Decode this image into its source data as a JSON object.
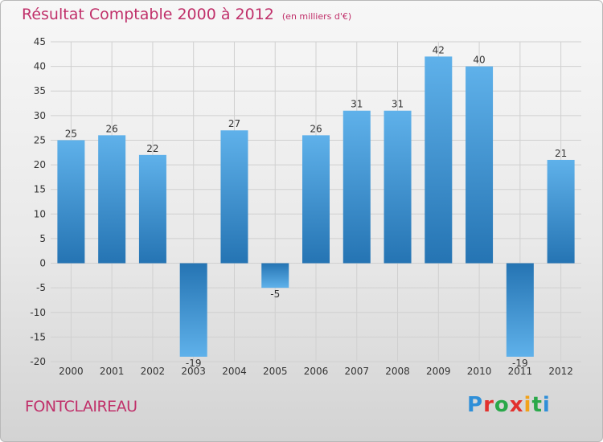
{
  "title": "Résultat Comptable 2000 à 2012",
  "unit_label": "(en milliers d'€)",
  "commune": "FONTCLAIREAU",
  "brand": [
    "P",
    "r",
    "o",
    "x",
    "i",
    "t",
    "i"
  ],
  "colors": {
    "title": "#c0306a",
    "bar_light": "#5fb1ea",
    "bar_dark": "#2574b3",
    "grid": "#d0d0d0",
    "axis_text": "#333333"
  },
  "chart_data": {
    "type": "bar",
    "categories": [
      "2000",
      "2001",
      "2002",
      "2003",
      "2004",
      "2005",
      "2006",
      "2007",
      "2008",
      "2009",
      "2010",
      "2011",
      "2012"
    ],
    "values": [
      25,
      26,
      22,
      -19,
      27,
      -5,
      26,
      31,
      31,
      42,
      40,
      -19,
      21
    ],
    "ylim": [
      -20,
      45
    ],
    "yticks": [
      45,
      40,
      35,
      30,
      25,
      20,
      15,
      10,
      5,
      0,
      -5,
      -10,
      -15,
      -20
    ],
    "grid": true,
    "xlabel": "",
    "ylabel": ""
  }
}
